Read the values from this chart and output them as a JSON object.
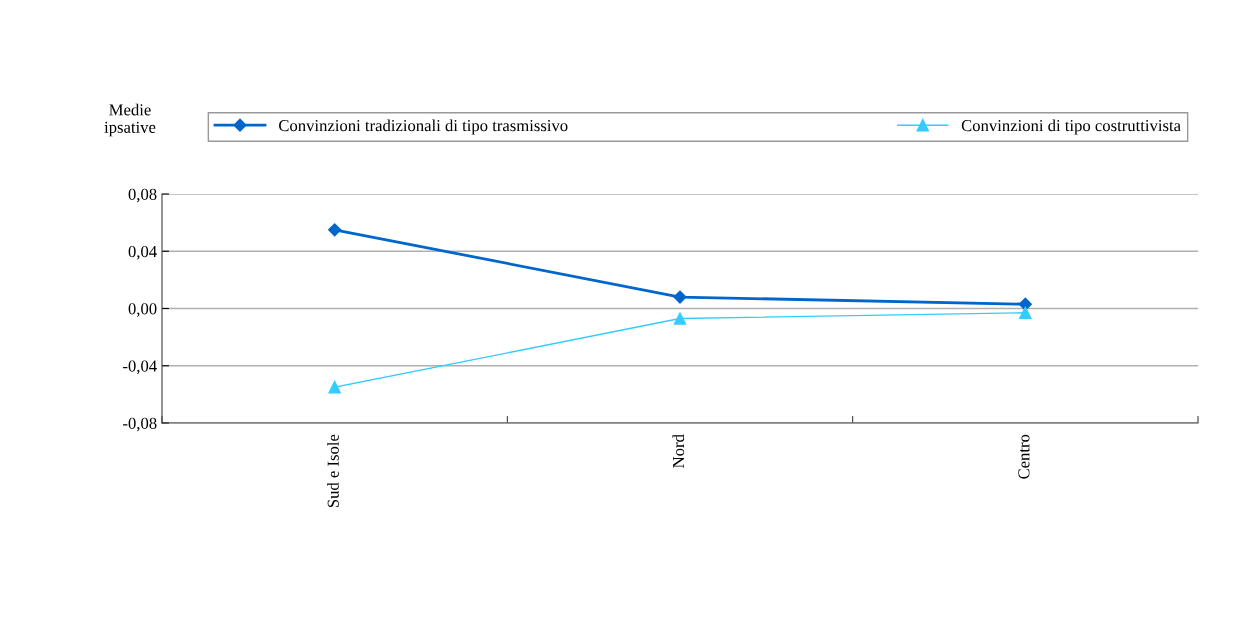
{
  "chart_data": {
    "type": "line",
    "ylabel": "Medie\nipsative",
    "categories": [
      "Sud e Isole",
      "Nord",
      "Centro"
    ],
    "series": [
      {
        "name": "Convinzioni tradizionali di tipo trasmissivo",
        "color": "#0066cc",
        "values": [
          0.055,
          0.008,
          0.003
        ],
        "marker": "diamond"
      },
      {
        "name": "Convinzioni di tipo costruttivista",
        "color": "#33ccff",
        "values": [
          -0.055,
          -0.007,
          -0.003
        ],
        "marker": "triangle"
      }
    ],
    "ylim": [
      -0.08,
      0.08
    ],
    "yticks": [
      {
        "value": -0.08,
        "label": "-0,08"
      },
      {
        "value": -0.04,
        "label": "-0,04"
      },
      {
        "value": 0,
        "label": "0,00"
      },
      {
        "value": 0.04,
        "label": "0,04"
      },
      {
        "value": 0.08,
        "label": "0,08"
      }
    ],
    "grid": "y",
    "legend": "top"
  }
}
